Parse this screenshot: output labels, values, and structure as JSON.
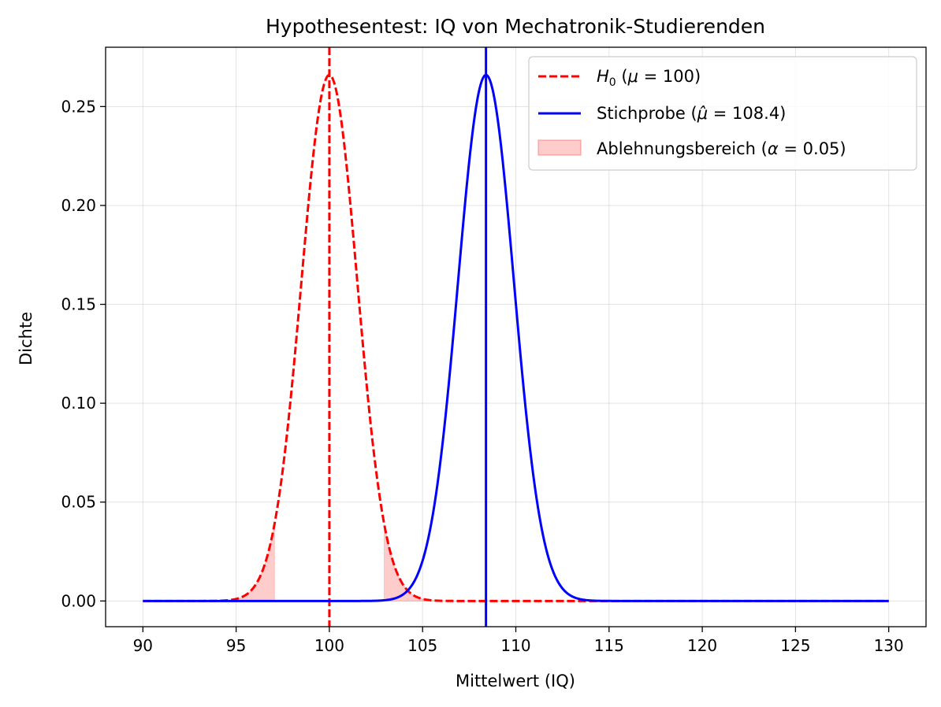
{
  "chart_data": {
    "type": "line",
    "title": "Hypothesentest: IQ von Mechatronik-Studierenden",
    "xlabel": "Mittelwert (IQ)",
    "ylabel": "Dichte",
    "xlim": [
      88,
      132
    ],
    "ylim": [
      -0.013,
      0.28
    ],
    "xticks": [
      90,
      95,
      100,
      105,
      110,
      115,
      120,
      125,
      130
    ],
    "yticks": [
      0.0,
      0.05,
      0.1,
      0.15,
      0.2,
      0.25
    ],
    "xtick_labels": [
      "90",
      "95",
      "100",
      "105",
      "110",
      "115",
      "120",
      "125",
      "130"
    ],
    "ytick_labels": [
      "0.00",
      "0.05",
      "0.10",
      "0.15",
      "0.20",
      "0.25"
    ],
    "grid": true,
    "legend_position": "upper right",
    "series": [
      {
        "name": "H0 (μ = 100)",
        "kind": "normal_pdf",
        "mean": 100,
        "sd": 1.5,
        "x_range": [
          90,
          130
        ],
        "color": "#ff0000",
        "linestyle": "dashed",
        "vline": 100
      },
      {
        "name": "Stichprobe (μ̂ = 108.4)",
        "kind": "normal_pdf",
        "mean": 108.4,
        "sd": 1.5,
        "x_range": [
          90,
          130
        ],
        "color": "#0000ff",
        "linestyle": "solid",
        "vline": 108.4
      }
    ],
    "rejection_region": {
      "name": "Ablehnungsbereich (α = 0.05)",
      "alpha": 0.05,
      "lower": [
        90,
        97.06
      ],
      "upper": [
        102.94,
        130
      ],
      "color": "#ff0000",
      "opacity": 0.2
    },
    "legend": [
      {
        "label": "H0 (μ = 100)",
        "style": "dashed",
        "color": "#ff0000"
      },
      {
        "label": "Stichprobe (μ̂ = 108.4)",
        "style": "solid",
        "color": "#0000ff"
      },
      {
        "label": "Ablehnungsbereich (α = 0.05)",
        "style": "patch",
        "color": "#ff0000"
      }
    ]
  }
}
